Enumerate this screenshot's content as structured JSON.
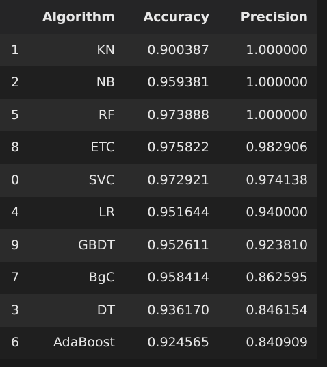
{
  "table": {
    "columns": [
      "",
      "Algorithm",
      "Accuracy",
      "Precision"
    ],
    "rows": [
      {
        "index": "1",
        "algorithm": "KN",
        "accuracy": "0.900387",
        "precision": "1.000000"
      },
      {
        "index": "2",
        "algorithm": "NB",
        "accuracy": "0.959381",
        "precision": "1.000000"
      },
      {
        "index": "5",
        "algorithm": "RF",
        "accuracy": "0.973888",
        "precision": "1.000000"
      },
      {
        "index": "8",
        "algorithm": "ETC",
        "accuracy": "0.975822",
        "precision": "0.982906"
      },
      {
        "index": "0",
        "algorithm": "SVC",
        "accuracy": "0.972921",
        "precision": "0.974138"
      },
      {
        "index": "4",
        "algorithm": "LR",
        "accuracy": "0.951644",
        "precision": "0.940000"
      },
      {
        "index": "9",
        "algorithm": "GBDT",
        "accuracy": "0.952611",
        "precision": "0.923810"
      },
      {
        "index": "7",
        "algorithm": "BgC",
        "accuracy": "0.958414",
        "precision": "0.862595"
      },
      {
        "index": "3",
        "algorithm": "DT",
        "accuracy": "0.936170",
        "precision": "0.846154"
      },
      {
        "index": "6",
        "algorithm": "AdaBoost",
        "accuracy": "0.924565",
        "precision": "0.840909"
      }
    ]
  },
  "colors": {
    "background": "#1a1a1a",
    "header_bg": "#252526",
    "row_odd": "#2b2b2b",
    "row_even": "#1f1f1f",
    "text": "#e8e8e8"
  }
}
